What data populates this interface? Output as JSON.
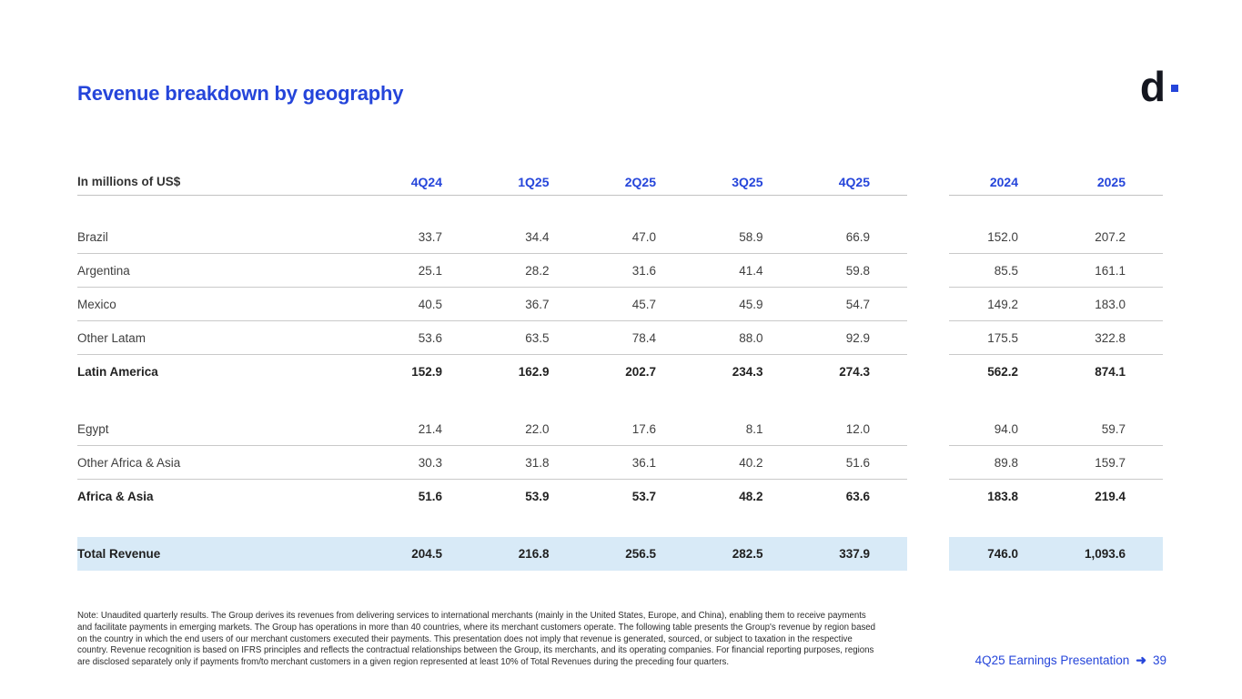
{
  "slide": {
    "title": "Revenue breakdown by geography",
    "logo": {
      "letter": "d"
    },
    "accent_color": "#2545DA",
    "highlight_color": "#d8eaf7",
    "footnote": "Note: Unaudited quarterly results. The Group derives its revenues from delivering services to international merchants (mainly in the United States, Europe, and China), enabling them to receive payments and facilitate payments in emerging markets. The Group has operations in more than 40 countries, where its merchant customers operate. The following table presents the Group's revenue by region based on the country in which the end users of our merchant customers executed their payments. This presentation does not imply that revenue is generated, sourced, or subject to taxation in the respective country. Revenue recognition is based on IFRS principles and reflects the contractual relationships between the Group, its merchants, and its operating companies. For financial reporting purposes, regions are disclosed separately only if payments from/to merchant customers in a given region represented at least 10% of Total Revenues during the preceding four quarters.",
    "footer": {
      "label": "4Q25 Earnings Presentation",
      "arrow": "➜",
      "page": "39"
    }
  },
  "table": {
    "unit_label": "In millions of US$",
    "quarter_headers": [
      "4Q24",
      "1Q25",
      "2Q25",
      "3Q25",
      "4Q25"
    ],
    "year_headers": [
      "2024",
      "2025"
    ],
    "sections": [
      {
        "rows": [
          {
            "label": "Brazil",
            "quarters": [
              "33.7",
              "34.4",
              "47.0",
              "58.9",
              "66.9"
            ],
            "years": [
              "152.0",
              "207.2"
            ],
            "is_subtotal": false
          },
          {
            "label": "Argentina",
            "quarters": [
              "25.1",
              "28.2",
              "31.6",
              "41.4",
              "59.8"
            ],
            "years": [
              "85.5",
              "161.1"
            ],
            "is_subtotal": false
          },
          {
            "label": "Mexico",
            "quarters": [
              "40.5",
              "36.7",
              "45.7",
              "45.9",
              "54.7"
            ],
            "years": [
              "149.2",
              "183.0"
            ],
            "is_subtotal": false
          },
          {
            "label": "Other Latam",
            "quarters": [
              "53.6",
              "63.5",
              "78.4",
              "88.0",
              "92.9"
            ],
            "years": [
              "175.5",
              "322.8"
            ],
            "is_subtotal": false
          },
          {
            "label": "Latin America",
            "quarters": [
              "152.9",
              "162.9",
              "202.7",
              "234.3",
              "274.3"
            ],
            "years": [
              "562.2",
              "874.1"
            ],
            "is_subtotal": true
          }
        ]
      },
      {
        "rows": [
          {
            "label": "Egypt",
            "quarters": [
              "21.4",
              "22.0",
              "17.6",
              "8.1",
              "12.0"
            ],
            "years": [
              "94.0",
              "59.7"
            ],
            "is_subtotal": false
          },
          {
            "label": "Other Africa & Asia",
            "quarters": [
              "30.3",
              "31.8",
              "36.1",
              "40.2",
              "51.6"
            ],
            "years": [
              "89.8",
              "159.7"
            ],
            "is_subtotal": false
          },
          {
            "label": "Africa & Asia",
            "quarters": [
              "51.6",
              "53.9",
              "53.7",
              "48.2",
              "63.6"
            ],
            "years": [
              "183.8",
              "219.4"
            ],
            "is_subtotal": true
          }
        ]
      }
    ],
    "total_row": {
      "label": "Total Revenue",
      "quarters": [
        "204.5",
        "216.8",
        "256.5",
        "282.5",
        "337.9"
      ],
      "years": [
        "746.0",
        "1,093.6"
      ]
    }
  }
}
